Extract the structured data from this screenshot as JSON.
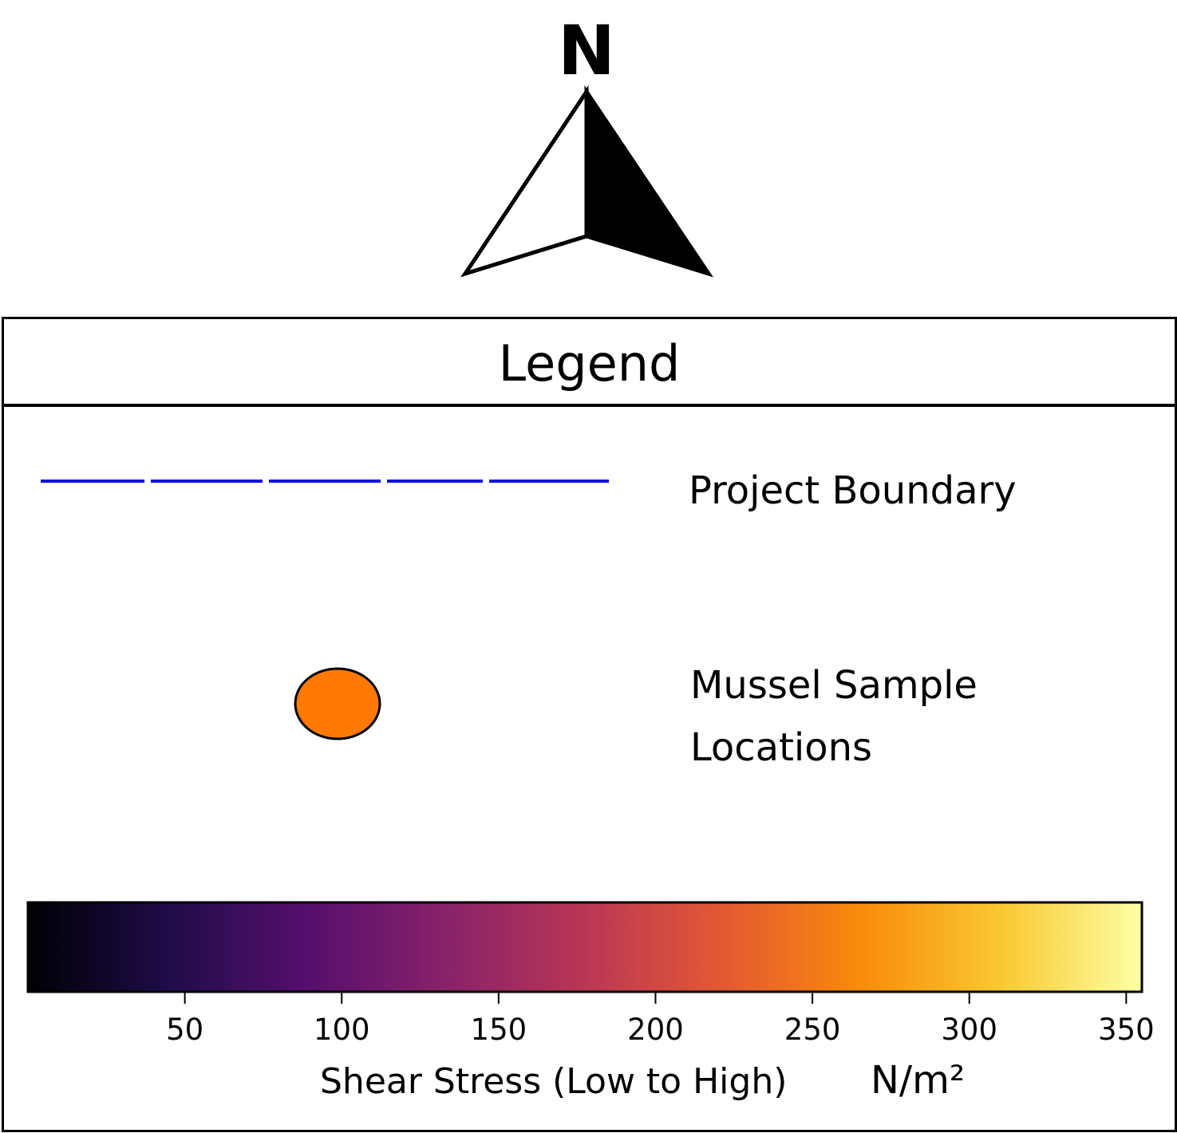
{
  "north_arrow": {
    "label": "N"
  },
  "legend": {
    "title": "Legend",
    "items": [
      {
        "label": "Project Boundary",
        "symbol": "dashed-line",
        "color": "#1010e0"
      },
      {
        "label_lines": [
          "Mussel Sample",
          "Locations"
        ],
        "symbol": "circle",
        "color": "#ff7a05"
      }
    ]
  },
  "chart_data": {
    "type": "heatmap",
    "xlabel": "Shear Stress (Low to High)",
    "unit": "N/m²",
    "range": [
      0,
      355
    ],
    "ticks": [
      50,
      100,
      150,
      200,
      250,
      300,
      350
    ],
    "colormap": "inferno",
    "colors": [
      "#000004",
      "#1f0c48",
      "#550f6d",
      "#88226a",
      "#ba3655",
      "#e35933",
      "#f98c0a",
      "#f9c932",
      "#fcffa4"
    ]
  }
}
